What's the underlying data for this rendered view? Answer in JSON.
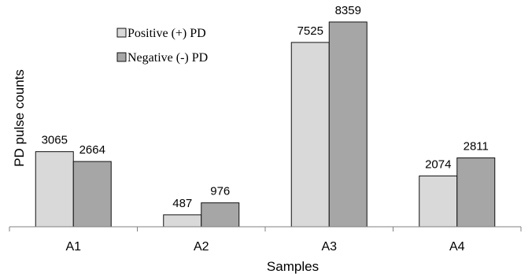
{
  "chart_data": {
    "type": "bar",
    "categories": [
      "A1",
      "A2",
      "A3",
      "A4"
    ],
    "series": [
      {
        "name": "Positive (+) PD",
        "values": [
          3065,
          487,
          7525,
          2074
        ],
        "color": "#d9d9d9"
      },
      {
        "name": "Negative (-) PD",
        "values": [
          2664,
          976,
          8359,
          2811
        ],
        "color": "#a6a6a6"
      }
    ],
    "title": "",
    "xlabel": "Samples",
    "ylabel": "PD pulse counts",
    "ylim": [
      0,
      9000
    ],
    "grid": false,
    "legend_position": "top-left",
    "data_labels": true,
    "bar_border_color": "#111111"
  }
}
